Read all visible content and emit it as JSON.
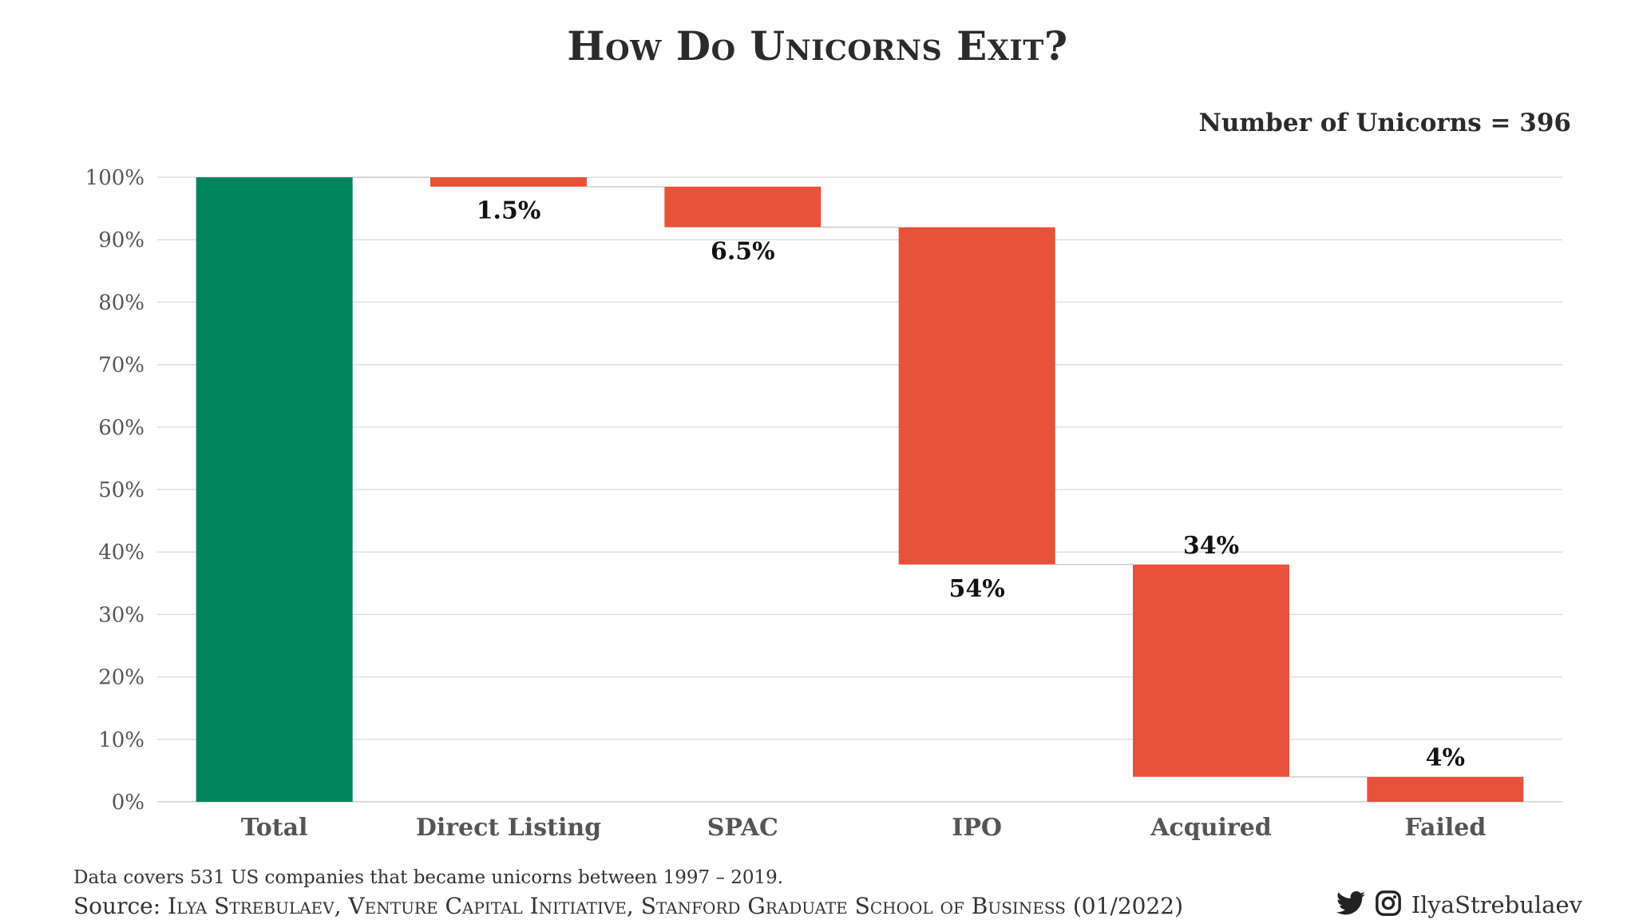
{
  "title": "How Do Unicorns Exit?",
  "count_label": "Number of Unicorns = 396",
  "footnote": "Data covers 531 US companies that became unicorns between 1997 – 2019.",
  "source_prefix": "Source: ",
  "source_text": "Ilya Strebulaev, Venture Capital Initiative, Stanford Graduate School of Business (01/2022)",
  "social": {
    "handle": "IlyaStrebulaev",
    "icons": [
      "twitter-icon",
      "instagram-icon"
    ]
  },
  "colors": {
    "total": "#00845c",
    "decrease": "#e8513a",
    "grid": "#dddddd",
    "connector": "#cccccc"
  },
  "chart_data": {
    "type": "waterfall",
    "title": "How Do Unicorns Exit?",
    "categories": [
      "Total",
      "Direct Listing",
      "SPAC",
      "IPO",
      "Acquired",
      "Failed"
    ],
    "values": [
      100,
      1.5,
      6.5,
      54,
      34,
      4
    ],
    "labels": [
      "",
      "1.5%",
      "6.5%",
      "54%",
      "34%",
      "4%"
    ],
    "ylim": [
      0,
      100
    ],
    "yticks": [
      0,
      10,
      20,
      30,
      40,
      50,
      60,
      70,
      80,
      90,
      100
    ],
    "ytick_labels": [
      "0%",
      "10%",
      "20%",
      "30%",
      "40%",
      "50%",
      "60%",
      "70%",
      "80%",
      "90%",
      "100%"
    ],
    "xlabel": "",
    "ylabel": "",
    "grid": true
  }
}
